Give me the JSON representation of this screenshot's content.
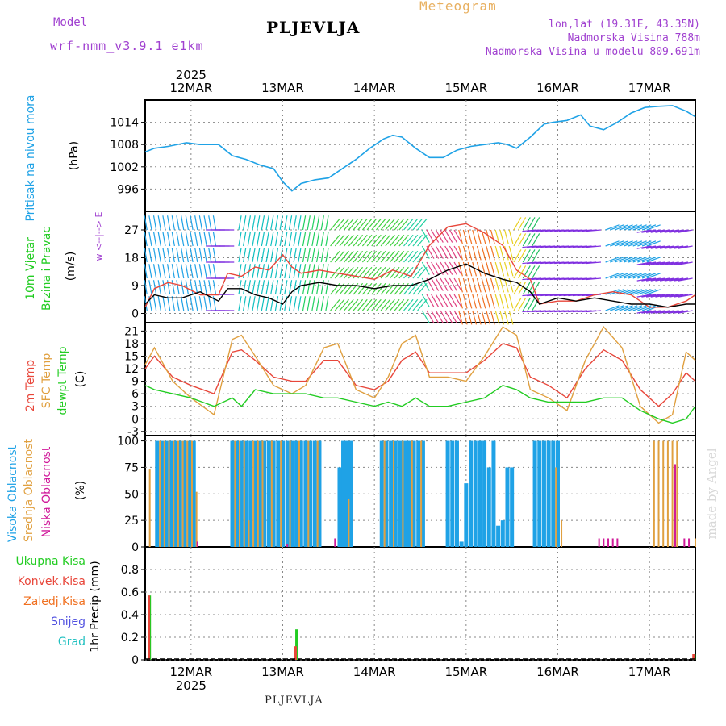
{
  "header": {
    "title": "PLJEVLJA",
    "subtitle": "Meteogram",
    "model_label": "Model",
    "model_name": "wrf-nmm_v3.9.1 e1km",
    "location": "lon,lat (19.31E, 43.35N)",
    "elevation": "Nadmorska Visina 788m",
    "model_elevation": "Nadmorska Visina u modelu 809.691m",
    "bottom_title": "PLJEVLJA",
    "watermark": "made by Angel"
  },
  "colors": {
    "pressure": "#1fa2e6",
    "temp2m": "#e8463a",
    "sfc_temp": "#e0a040",
    "dewpoint": "#22cc22",
    "high_cloud": "#1fa2e6",
    "mid_cloud": "#e0a040",
    "low_cloud": "#d01a9a",
    "total_precip": "#22cc22",
    "conv_precip": "#e8463a",
    "freezing": "#f07020",
    "snow": "#5050e0",
    "hail": "#20c0c0",
    "label_purple": "#a040d0"
  },
  "chart_data": [
    {
      "type": "line",
      "panel": "pressure",
      "ylabel": [
        "Pritisak na nivou mora",
        "(hPa)"
      ],
      "ylim": [
        990,
        1020
      ],
      "yticks": [
        996,
        1002,
        1008,
        1014
      ],
      "x": [
        11.5,
        11.6,
        11.75,
        11.95,
        12.1,
        12.3,
        12.45,
        12.6,
        12.75,
        12.9,
        13.0,
        13.1,
        13.2,
        13.35,
        13.5,
        13.65,
        13.8,
        13.95,
        14.1,
        14.2,
        14.3,
        14.45,
        14.6,
        14.75,
        14.9,
        15.05,
        15.2,
        15.35,
        15.45,
        15.55,
        15.7,
        15.85,
        15.95,
        16.1,
        16.25,
        16.35,
        16.5,
        16.65,
        16.8,
        16.95,
        17.1,
        17.25,
        17.4,
        17.5
      ],
      "y": [
        1006,
        1007,
        1007.5,
        1008.5,
        1008,
        1008,
        1005,
        1004,
        1002.5,
        1001.5,
        998,
        995.5,
        997.5,
        998.5,
        999,
        1001.5,
        1004,
        1007,
        1009.5,
        1010.5,
        1010,
        1007,
        1004.5,
        1004.5,
        1006.5,
        1007.5,
        1008,
        1008.5,
        1008,
        1007,
        1010,
        1013.5,
        1014,
        1014.5,
        1016,
        1013,
        1012,
        1014,
        1016.5,
        1018,
        1018.3,
        1018.5,
        1017,
        1015.5
      ]
    },
    {
      "type": "line",
      "panel": "wind",
      "ylabel": [
        "10m Vjetar",
        "Brzina i Pravac",
        "(m/s)"
      ],
      "legend": "w <--|--> E",
      "ylim": [
        -3,
        33
      ],
      "yticks": [
        0,
        9,
        18,
        27
      ],
      "series": [
        {
          "name": "speed",
          "x": [
            11.5,
            11.6,
            11.75,
            11.9,
            12.1,
            12.3,
            12.4,
            12.55,
            12.7,
            12.85,
            13.0,
            13.1,
            13.2,
            13.4,
            13.6,
            13.8,
            14.0,
            14.2,
            14.4,
            14.6,
            14.8,
            15.0,
            15.2,
            15.4,
            15.55,
            15.7,
            15.8,
            16.0,
            16.2,
            16.4,
            16.6,
            16.8,
            17.0,
            17.2,
            17.4,
            17.5
          ],
          "values": [
            3,
            6,
            5,
            5,
            7,
            4,
            8,
            8,
            6,
            5,
            3,
            7,
            9,
            10,
            9,
            9,
            8,
            9,
            9,
            11,
            14,
            16,
            13,
            11,
            10,
            7,
            3,
            5,
            4,
            5,
            4,
            3,
            3,
            2,
            3,
            3
          ]
        },
        {
          "name": "gust",
          "x": [
            11.5,
            11.6,
            11.75,
            11.9,
            12.1,
            12.3,
            12.4,
            12.55,
            12.7,
            12.85,
            13.0,
            13.1,
            13.2,
            13.4,
            13.6,
            13.8,
            14.0,
            14.2,
            14.4,
            14.6,
            14.8,
            15.0,
            15.2,
            15.4,
            15.55,
            15.7,
            15.8,
            16.0,
            16.2,
            16.4,
            16.6,
            16.8,
            17.0,
            17.2,
            17.4,
            17.5
          ],
          "values": [
            2,
            8,
            10,
            9,
            6,
            6,
            13,
            12,
            15,
            14,
            19,
            15,
            13,
            14,
            13,
            12,
            11,
            14,
            12,
            22,
            28,
            29,
            26,
            22,
            14,
            11,
            3,
            4,
            4,
            6,
            7,
            6,
            2,
            2,
            4,
            6
          ]
        }
      ]
    },
    {
      "type": "line",
      "panel": "temperature",
      "ylabel": [
        "2m Temp",
        "SFC Temp",
        "dewpt Temp",
        "(C)"
      ],
      "ylim": [
        -4,
        23
      ],
      "yticks": [
        -3,
        0,
        3,
        6,
        9,
        12,
        15,
        18,
        21
      ],
      "series": [
        {
          "name": "2m Temp",
          "x": [
            11.5,
            11.6,
            11.8,
            12.0,
            12.25,
            12.45,
            12.55,
            12.7,
            12.9,
            13.1,
            13.25,
            13.45,
            13.6,
            13.8,
            14.0,
            14.15,
            14.3,
            14.45,
            14.6,
            14.8,
            15.0,
            15.2,
            15.4,
            15.55,
            15.7,
            15.9,
            16.1,
            16.3,
            16.5,
            16.7,
            16.9,
            17.1,
            17.25,
            17.4,
            17.5
          ],
          "values": [
            12,
            15,
            10,
            8,
            6,
            16,
            16.5,
            14,
            10,
            9,
            9,
            14,
            14,
            8,
            7,
            9,
            14,
            16,
            11,
            11,
            11,
            14,
            18,
            17,
            10,
            8,
            5,
            12,
            16.5,
            14,
            7,
            3,
            6,
            11,
            9
          ]
        },
        {
          "name": "SFC Temp",
          "x": [
            11.5,
            11.6,
            11.8,
            12.0,
            12.25,
            12.45,
            12.55,
            12.7,
            12.9,
            13.1,
            13.25,
            13.45,
            13.6,
            13.8,
            14.0,
            14.15,
            14.3,
            14.45,
            14.6,
            14.8,
            15.0,
            15.2,
            15.4,
            15.55,
            15.7,
            15.9,
            16.1,
            16.3,
            16.5,
            16.7,
            16.9,
            17.1,
            17.25,
            17.4,
            17.5
          ],
          "values": [
            13,
            17,
            9,
            5,
            1,
            19,
            20,
            15,
            8,
            6,
            8,
            17,
            18,
            7,
            5,
            10,
            18,
            20,
            10,
            10,
            9,
            15,
            22,
            20,
            7,
            5,
            2,
            14,
            22,
            17,
            3,
            -1,
            1,
            16,
            14
          ]
        },
        {
          "name": "dewpt Temp",
          "x": [
            11.5,
            11.6,
            11.8,
            12.0,
            12.25,
            12.45,
            12.55,
            12.7,
            12.9,
            13.1,
            13.25,
            13.45,
            13.6,
            13.8,
            14.0,
            14.15,
            14.3,
            14.45,
            14.6,
            14.8,
            15.0,
            15.2,
            15.4,
            15.55,
            15.7,
            15.9,
            16.1,
            16.3,
            16.5,
            16.7,
            16.9,
            17.1,
            17.25,
            17.4,
            17.5
          ],
          "values": [
            8,
            7,
            6,
            5,
            3,
            5,
            3,
            7,
            6,
            6,
            6,
            5,
            5,
            4,
            3,
            4,
            3,
            5,
            3,
            3,
            4,
            5,
            8,
            7,
            5,
            4,
            4,
            4,
            5,
            5,
            2,
            0,
            -1,
            0,
            3
          ]
        }
      ]
    },
    {
      "type": "bar",
      "panel": "cloud",
      "ylabel": [
        "Visoka Oblacnost",
        "Srednja Oblacnost",
        "Niska Oblacnost",
        "(%)"
      ],
      "ylim": [
        0,
        105
      ],
      "yticks": [
        0,
        25,
        50,
        75,
        100
      ],
      "series": [
        {
          "name": "Visoka Oblacnost",
          "x": [
            11.63,
            11.68,
            11.73,
            11.78,
            11.83,
            11.88,
            11.93,
            11.98,
            12.03,
            12.45,
            12.5,
            12.55,
            12.6,
            12.65,
            12.7,
            12.75,
            12.8,
            12.85,
            12.9,
            12.95,
            13.0,
            13.05,
            13.1,
            13.15,
            13.2,
            13.25,
            13.3,
            13.35,
            13.4,
            13.62,
            13.66,
            13.7,
            13.74,
            14.08,
            14.13,
            14.18,
            14.23,
            14.28,
            14.33,
            14.38,
            14.43,
            14.48,
            14.53,
            14.8,
            14.85,
            14.9,
            14.95,
            15.0,
            15.05,
            15.1,
            15.15,
            15.2,
            15.25,
            15.3,
            15.35,
            15.4,
            15.45,
            15.5,
            15.75,
            15.8,
            15.85,
            15.9,
            15.95,
            16.0
          ],
          "values": [
            100,
            100,
            100,
            100,
            100,
            100,
            100,
            100,
            100,
            100,
            100,
            100,
            100,
            100,
            100,
            100,
            100,
            100,
            100,
            100,
            100,
            100,
            100,
            100,
            100,
            100,
            100,
            100,
            100,
            75,
            100,
            100,
            100,
            100,
            100,
            100,
            100,
            100,
            100,
            100,
            100,
            100,
            100,
            100,
            100,
            100,
            5,
            60,
            100,
            100,
            100,
            100,
            75,
            100,
            20,
            25,
            75,
            75,
            100,
            100,
            100,
            100,
            100,
            100
          ]
        },
        {
          "name": "Srednja Oblacnost",
          "x": [
            11.55,
            11.66,
            11.71,
            11.76,
            11.81,
            11.86,
            11.91,
            11.96,
            12.01,
            12.06,
            12.48,
            12.53,
            12.58,
            12.63,
            12.68,
            12.73,
            12.78,
            12.88,
            12.98,
            13.08,
            13.18,
            13.28,
            13.38,
            13.72,
            14.11,
            14.21,
            14.31,
            14.41,
            14.51,
            15.98,
            16.04,
            17.05,
            17.1,
            17.15,
            17.2,
            17.25,
            17.3,
            17.5
          ],
          "values": [
            73,
            100,
            100,
            100,
            100,
            100,
            100,
            100,
            100,
            52,
            100,
            100,
            100,
            25,
            100,
            100,
            100,
            100,
            100,
            100,
            100,
            100,
            100,
            45,
            100,
            100,
            100,
            100,
            100,
            75,
            25,
            100,
            100,
            100,
            100,
            100,
            100,
            8
          ]
        },
        {
          "name": "Niska Oblacnost",
          "x": [
            12.07,
            13.05,
            13.57,
            16.45,
            16.5,
            16.55,
            16.6,
            16.65,
            17.28,
            17.38,
            17.43
          ],
          "values": [
            5,
            3,
            8,
            8,
            8,
            8,
            8,
            8,
            78,
            8,
            8
          ]
        }
      ]
    },
    {
      "type": "bar",
      "panel": "precip",
      "ylabel": [
        "1hr Precip (mm)"
      ],
      "ylim": [
        0,
        1.0
      ],
      "yticks": [
        0,
        0.2,
        0.4,
        0.6,
        0.8
      ],
      "legend": [
        "Ukupna Kisa",
        "Konvek.Kisa",
        "Zaledj.Kisa",
        "Snijeg",
        "Grad"
      ],
      "series": [
        {
          "name": "Ukupna Kisa",
          "x": [
            11.55,
            13.15,
            17.49
          ],
          "values": [
            0.57,
            0.27,
            0.05
          ]
        },
        {
          "name": "Konvek.Kisa",
          "x": [
            11.54,
            13.14,
            17.48
          ],
          "values": [
            0.57,
            0.12,
            0.05
          ]
        }
      ]
    }
  ],
  "x_axis": {
    "range": [
      11.5,
      17.5
    ],
    "day_labels": [
      "12MAR",
      "13MAR",
      "14MAR",
      "15MAR",
      "16MAR",
      "17MAR"
    ],
    "day_positions": [
      12,
      13,
      14,
      15,
      16,
      17
    ],
    "year_label": "2025"
  }
}
